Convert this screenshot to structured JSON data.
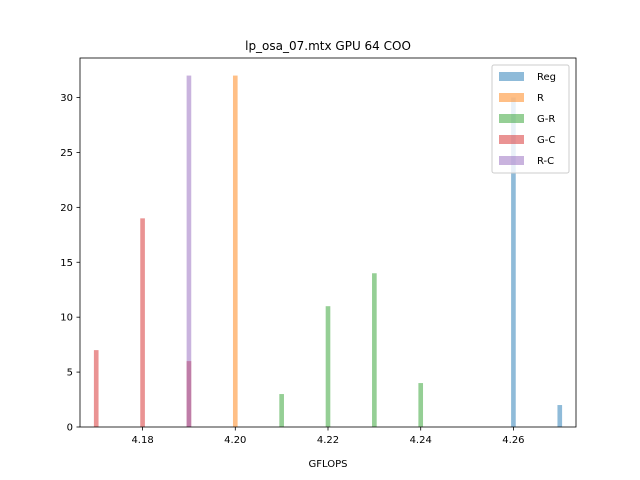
{
  "chart_data": {
    "type": "bar",
    "title": "lp_osa_07.mtx GPU 64 COO",
    "xlabel": "GFLOPS",
    "ylabel": "",
    "xlim": [
      4.1665,
      4.2735
    ],
    "ylim": [
      0,
      33.6
    ],
    "xticks": [
      4.18,
      4.2,
      4.22,
      4.24,
      4.26
    ],
    "xtick_labels": [
      "4.18",
      "4.20",
      "4.22",
      "4.24",
      "4.26"
    ],
    "yticks": [
      0,
      5,
      10,
      15,
      20,
      25,
      30
    ],
    "ytick_labels": [
      "0",
      "5",
      "10",
      "15",
      "20",
      "25",
      "30"
    ],
    "bar_width": 0.001,
    "grid": false,
    "legend_position": "top-right",
    "series": [
      {
        "name": "Reg",
        "color": "#1f77b4",
        "points": [
          {
            "x": 4.26,
            "y": 30
          },
          {
            "x": 4.27,
            "y": 2
          }
        ]
      },
      {
        "name": "R",
        "color": "#ff7f0e",
        "points": [
          {
            "x": 4.2,
            "y": 32
          }
        ]
      },
      {
        "name": "G-R",
        "color": "#2ca02c",
        "points": [
          {
            "x": 4.21,
            "y": 3
          },
          {
            "x": 4.22,
            "y": 11
          },
          {
            "x": 4.23,
            "y": 14
          },
          {
            "x": 4.24,
            "y": 4
          }
        ]
      },
      {
        "name": "G-C",
        "color": "#d62728",
        "points": [
          {
            "x": 4.17,
            "y": 7
          },
          {
            "x": 4.18,
            "y": 19
          },
          {
            "x": 4.19,
            "y": 6
          }
        ]
      },
      {
        "name": "R-C",
        "color": "#9467bd",
        "points": [
          {
            "x": 4.19,
            "y": 32
          }
        ]
      }
    ]
  }
}
